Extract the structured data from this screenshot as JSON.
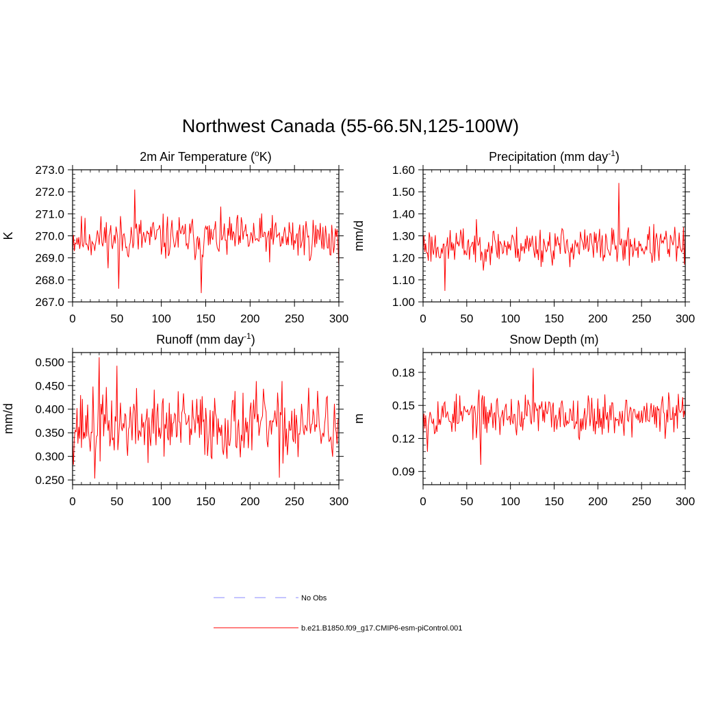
{
  "figure": {
    "title": "Northwest Canada (55-66.5N,125-100W)"
  },
  "legend": {
    "items": [
      {
        "label": "No Obs",
        "color": "#8888ff",
        "style": "dashed"
      },
      {
        "label": "b.e21.B1850.f09_g17.CMIP6-esm-piControl.001",
        "color": "#ff0000",
        "style": "solid"
      }
    ]
  },
  "chart_data": [
    {
      "type": "line",
      "title": "2m Air Temperature (",
      "title_unit": "o",
      "title_tail": "K)",
      "ylabel": "K",
      "xlim": [
        0,
        300
      ],
      "ylim": [
        267.0,
        273.0
      ],
      "xticks": [
        "0",
        "50",
        "100",
        "150",
        "200",
        "250",
        "300"
      ],
      "yticks": [
        "267.0",
        "268.0",
        "269.0",
        "270.0",
        "271.0",
        "272.0",
        "273.0"
      ],
      "series": [
        {
          "color": "#ff0000",
          "mean": 269.9,
          "amp": 0.75,
          "seed": 11,
          "spikes": [
            [
              70,
              272.1
            ],
            [
              145,
              267.4
            ],
            [
              52,
              267.6
            ]
          ]
        }
      ]
    },
    {
      "type": "line",
      "title": "Precipitation (mm day",
      "title_unit": "-1",
      "title_tail": ")",
      "ylabel": "mm/d",
      "xlim": [
        0,
        300
      ],
      "ylim": [
        1.0,
        1.6
      ],
      "xticks": [
        "0",
        "50",
        "100",
        "150",
        "200",
        "250",
        "300"
      ],
      "yticks": [
        "1.00",
        "1.10",
        "1.20",
        "1.30",
        "1.40",
        "1.50",
        "1.60"
      ],
      "series": [
        {
          "color": "#ff0000",
          "mean": 1.255,
          "amp": 0.065,
          "seed": 23,
          "spikes": [
            [
              224,
              1.54
            ],
            [
              25,
              1.05
            ]
          ]
        }
      ]
    },
    {
      "type": "line",
      "title": "Runoff (mm day",
      "title_unit": "-1",
      "title_tail": ")",
      "ylabel": "mm/d",
      "xlim": [
        0,
        300
      ],
      "ylim": [
        0.24,
        0.52
      ],
      "xticks": [
        "0",
        "50",
        "100",
        "150",
        "200",
        "250",
        "300"
      ],
      "yticks": [
        "0.250",
        "0.300",
        "0.350",
        "0.400",
        "0.450",
        "0.500"
      ],
      "series": [
        {
          "color": "#ff0000",
          "mean": 0.365,
          "amp": 0.055,
          "seed": 37,
          "spikes": [
            [
              30,
              0.51
            ],
            [
              25,
              0.253
            ],
            [
              50,
              0.492
            ],
            [
              233,
              0.255
            ]
          ]
        }
      ]
    },
    {
      "type": "line",
      "title": "Snow Depth (m)",
      "title_unit": "",
      "title_tail": "",
      "ylabel": "m",
      "xlim": [
        0,
        300
      ],
      "ylim": [
        0.078,
        0.198
      ],
      "xticks": [
        "0",
        "50",
        "100",
        "150",
        "200",
        "250",
        "300"
      ],
      "yticks": [
        "0.09",
        "0.12",
        "0.15",
        "0.18"
      ],
      "series": [
        {
          "color": "#ff0000",
          "mean": 0.141,
          "amp": 0.014,
          "seed": 53,
          "spikes": [
            [
              126,
              0.184
            ],
            [
              66,
              0.096
            ],
            [
              5,
              0.108
            ]
          ]
        }
      ]
    }
  ]
}
